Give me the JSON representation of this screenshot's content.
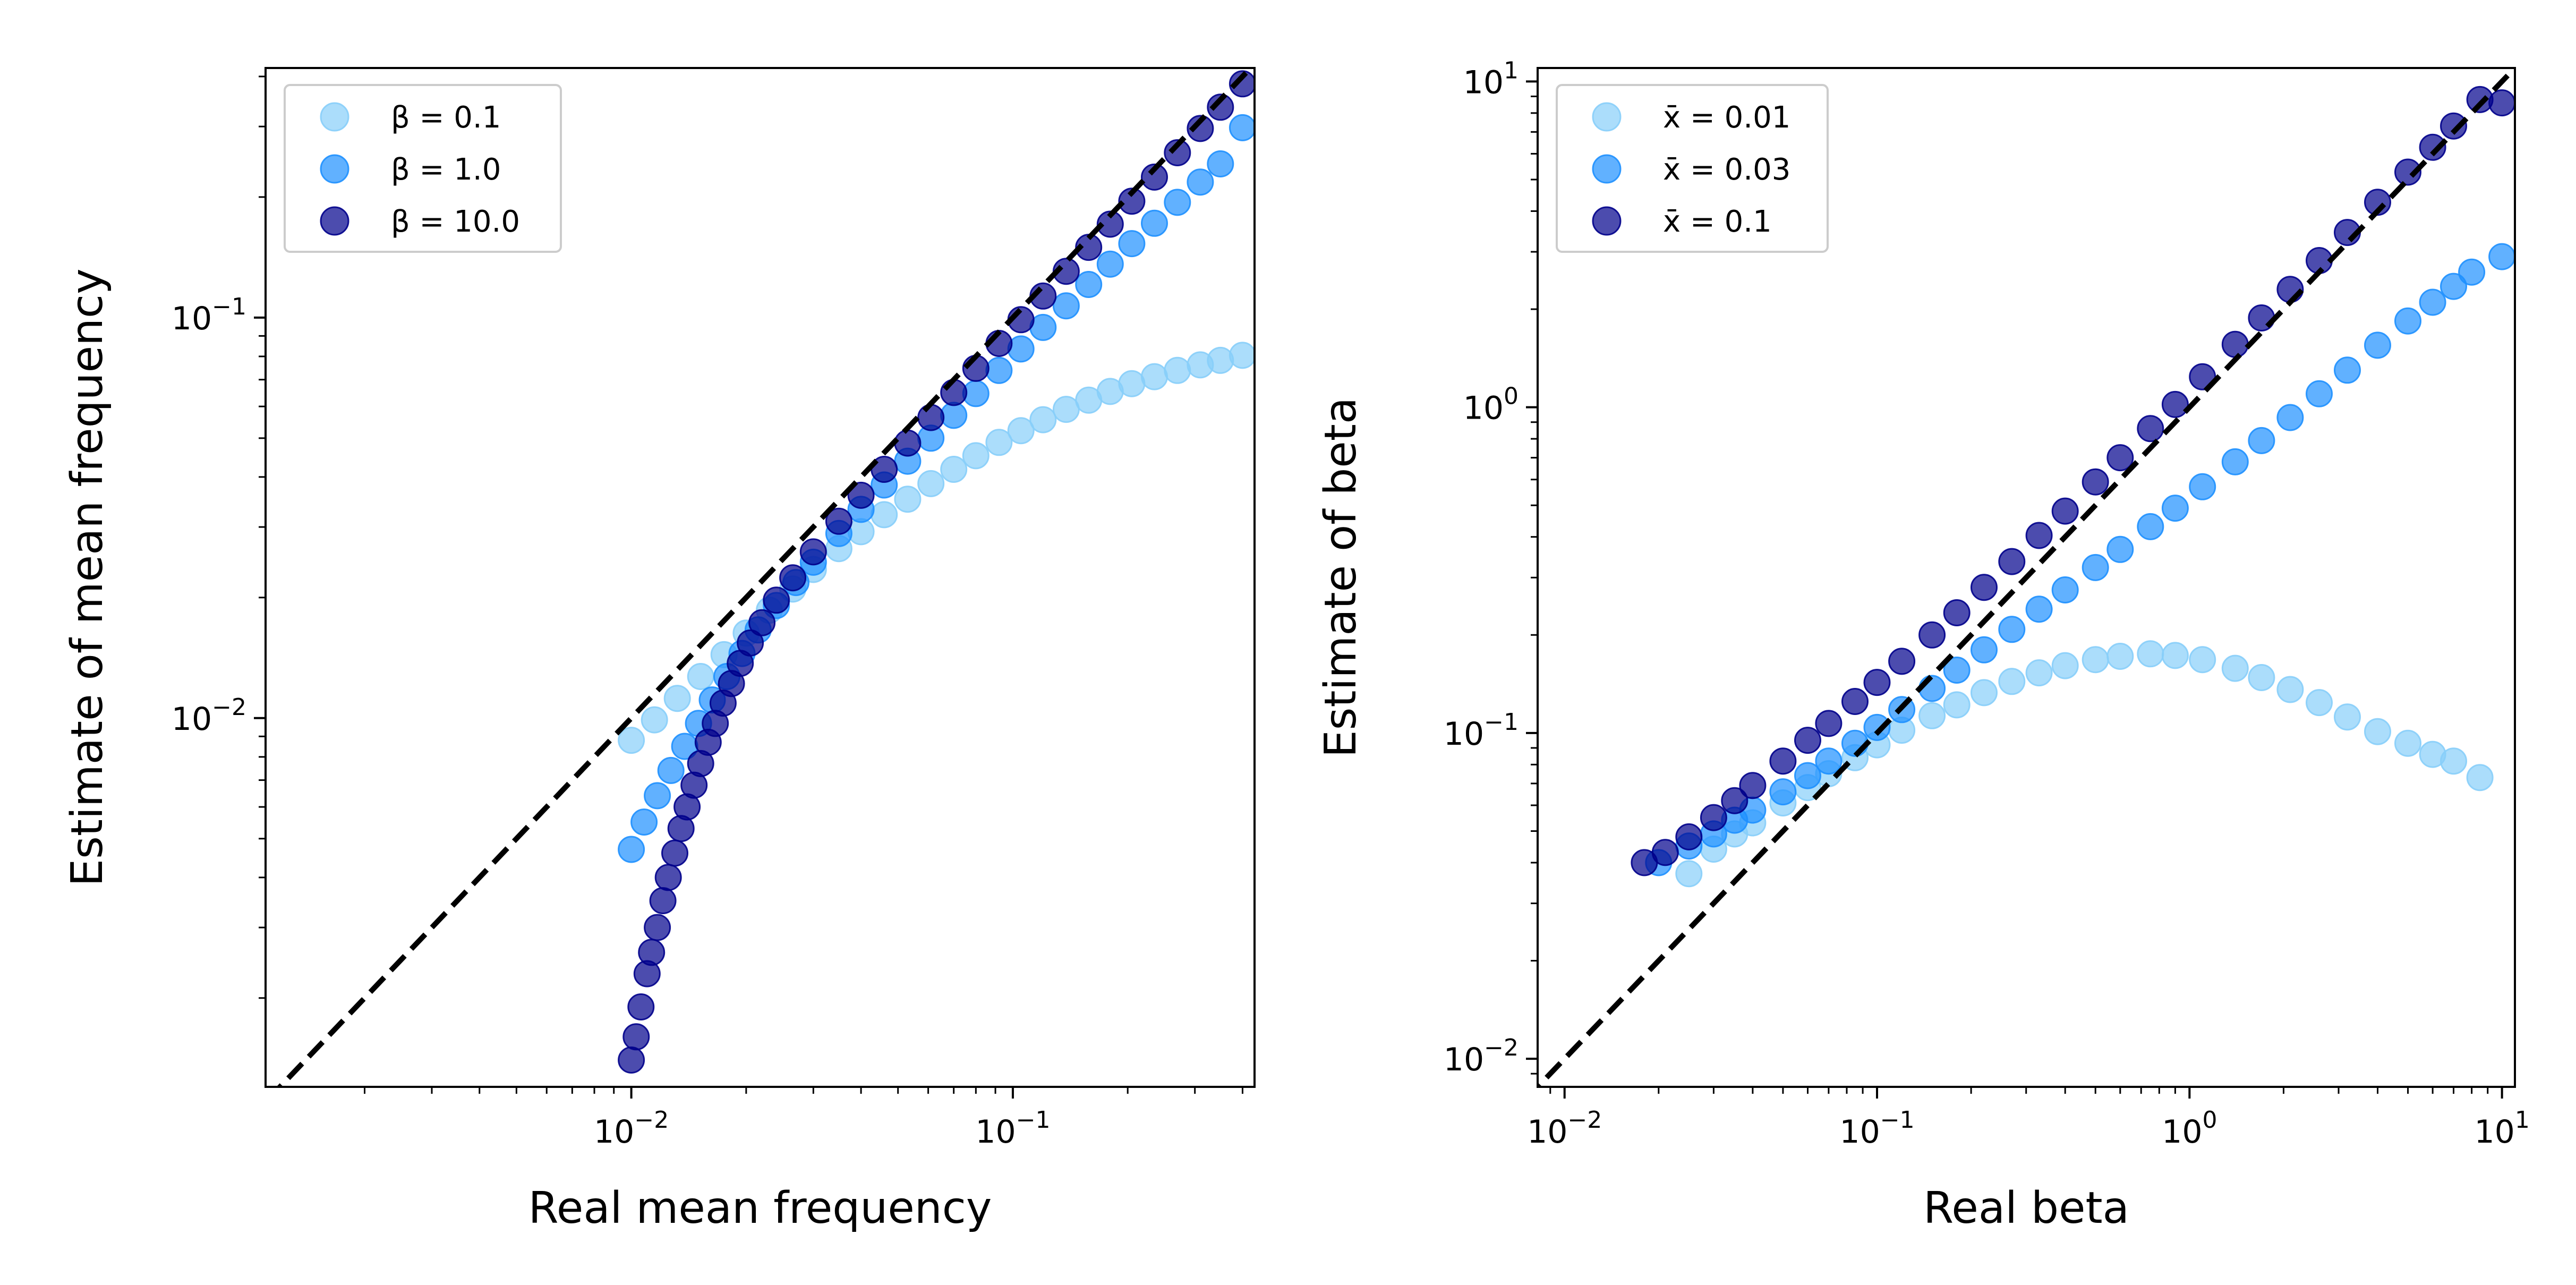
{
  "chart_data": [
    {
      "type": "scatter",
      "xlabel": "Real mean frequency",
      "ylabel": "Estimate of mean frequency",
      "xscale": "log",
      "yscale": "log",
      "xlim": [
        0.0011,
        0.43
      ],
      "ylim": [
        0.0012,
        0.42
      ],
      "xticks": [
        {
          "value": 0.01,
          "base": "10",
          "exp": "−2"
        },
        {
          "value": 0.1,
          "base": "10",
          "exp": "−1"
        }
      ],
      "yticks": [
        {
          "value": 0.01,
          "base": "10",
          "exp": "−2"
        },
        {
          "value": 0.1,
          "base": "10",
          "exp": "−1"
        }
      ],
      "legend": {
        "position": "top-left"
      },
      "reference_line": {
        "style": "dashed",
        "color": "#000000",
        "y_equals_x": true
      },
      "series": [
        {
          "name": "β = 0.1",
          "color": "#87cefa",
          "points": [
            [
              0.01,
              0.0088
            ],
            [
              0.0115,
              0.0099
            ],
            [
              0.0132,
              0.0112
            ],
            [
              0.0152,
              0.0127
            ],
            [
              0.0175,
              0.0144
            ],
            [
              0.02,
              0.0163
            ],
            [
              0.023,
              0.0186
            ],
            [
              0.0265,
              0.021
            ],
            [
              0.03,
              0.0235
            ],
            [
              0.035,
              0.0265
            ],
            [
              0.04,
              0.0292
            ],
            [
              0.046,
              0.0322
            ],
            [
              0.053,
              0.0352
            ],
            [
              0.061,
              0.0385
            ],
            [
              0.07,
              0.0418
            ],
            [
              0.08,
              0.0452
            ],
            [
              0.092,
              0.0488
            ],
            [
              0.105,
              0.0522
            ],
            [
              0.12,
              0.0556
            ],
            [
              0.138,
              0.059
            ],
            [
              0.158,
              0.0622
            ],
            [
              0.18,
              0.0654
            ],
            [
              0.205,
              0.0684
            ],
            [
              0.235,
              0.0712
            ],
            [
              0.27,
              0.0738
            ],
            [
              0.31,
              0.0762
            ],
            [
              0.35,
              0.0782
            ],
            [
              0.4,
              0.0805
            ]
          ]
        },
        {
          "name": "β = 1.0",
          "color": "#1e90ff",
          "points": [
            [
              0.01,
              0.0047
            ],
            [
              0.0108,
              0.0055
            ],
            [
              0.0117,
              0.0064
            ],
            [
              0.0127,
              0.0074
            ],
            [
              0.0138,
              0.0085
            ],
            [
              0.015,
              0.0097
            ],
            [
              0.0163,
              0.0111
            ],
            [
              0.0178,
              0.0127
            ],
            [
              0.0195,
              0.0145
            ],
            [
              0.0215,
              0.0166
            ],
            [
              0.024,
              0.0191
            ],
            [
              0.027,
              0.0218
            ],
            [
              0.03,
              0.0245
            ],
            [
              0.035,
              0.0289
            ],
            [
              0.04,
              0.0332
            ],
            [
              0.046,
              0.0382
            ],
            [
              0.053,
              0.0438
            ],
            [
              0.061,
              0.05
            ],
            [
              0.07,
              0.057
            ],
            [
              0.08,
              0.0646
            ],
            [
              0.092,
              0.0738
            ],
            [
              0.105,
              0.0835
            ],
            [
              0.12,
              0.0945
            ],
            [
              0.138,
              0.107
            ],
            [
              0.158,
              0.121
            ],
            [
              0.18,
              0.136
            ],
            [
              0.205,
              0.153
            ],
            [
              0.235,
              0.172
            ],
            [
              0.27,
              0.194
            ],
            [
              0.31,
              0.218
            ],
            [
              0.35,
              0.242
            ],
            [
              0.4,
              0.298
            ]
          ]
        },
        {
          "name": "β = 10.0",
          "color": "#00008b",
          "points": [
            [
              0.01,
              0.0014
            ],
            [
              0.0103,
              0.0016
            ],
            [
              0.0106,
              0.0019
            ],
            [
              0.011,
              0.0023
            ],
            [
              0.0113,
              0.0026
            ],
            [
              0.0117,
              0.003
            ],
            [
              0.0121,
              0.0035
            ],
            [
              0.0125,
              0.004
            ],
            [
              0.013,
              0.0046
            ],
            [
              0.0135,
              0.0053
            ],
            [
              0.014,
              0.006
            ],
            [
              0.0146,
              0.0068
            ],
            [
              0.0152,
              0.0077
            ],
            [
              0.0159,
              0.0087
            ],
            [
              0.0166,
              0.0097
            ],
            [
              0.0174,
              0.0109
            ],
            [
              0.0183,
              0.0122
            ],
            [
              0.0193,
              0.0137
            ],
            [
              0.0205,
              0.0154
            ],
            [
              0.022,
              0.0173
            ],
            [
              0.024,
              0.0197
            ],
            [
              0.0265,
              0.0224
            ],
            [
              0.03,
              0.026
            ],
            [
              0.035,
              0.031
            ],
            [
              0.04,
              0.036
            ],
            [
              0.046,
              0.0418
            ],
            [
              0.053,
              0.0486
            ],
            [
              0.061,
              0.0563
            ],
            [
              0.07,
              0.065
            ],
            [
              0.08,
              0.0747
            ],
            [
              0.092,
              0.0862
            ],
            [
              0.105,
              0.0988
            ],
            [
              0.12,
              0.1132
            ],
            [
              0.138,
              0.1305
            ],
            [
              0.158,
              0.1498
            ],
            [
              0.18,
              0.1711
            ],
            [
              0.205,
              0.1953
            ],
            [
              0.235,
              0.2243
            ],
            [
              0.27,
              0.258
            ],
            [
              0.31,
              0.2966
            ],
            [
              0.35,
              0.3352
            ],
            [
              0.4,
              0.3835
            ]
          ]
        }
      ]
    },
    {
      "type": "scatter",
      "xlabel": "Real beta",
      "ylabel": "Estimate of beta",
      "xscale": "log",
      "yscale": "log",
      "xlim": [
        0.0082,
        11.0
      ],
      "ylim": [
        0.0082,
        11.0
      ],
      "xticks": [
        {
          "value": 0.01,
          "base": "10",
          "exp": "−2"
        },
        {
          "value": 0.1,
          "base": "10",
          "exp": "−1"
        },
        {
          "value": 1,
          "base": "10",
          "exp": "0"
        },
        {
          "value": 10,
          "base": "10",
          "exp": "1"
        }
      ],
      "yticks": [
        {
          "value": 0.01,
          "base": "10",
          "exp": "−2"
        },
        {
          "value": 0.1,
          "base": "10",
          "exp": "−1"
        },
        {
          "value": 1,
          "base": "10",
          "exp": "0"
        },
        {
          "value": 10,
          "base": "10",
          "exp": "1"
        }
      ],
      "legend": {
        "position": "top-left"
      },
      "reference_line": {
        "style": "dashed",
        "color": "#000000",
        "y_equals_x": true
      },
      "series": [
        {
          "name": "x̄ = 0.01",
          "color": "#87cefa",
          "points": [
            [
              0.025,
              0.037
            ],
            [
              0.03,
              0.044
            ],
            [
              0.035,
              0.049
            ],
            [
              0.04,
              0.053
            ],
            [
              0.05,
              0.061
            ],
            [
              0.06,
              0.068
            ],
            [
              0.07,
              0.075
            ],
            [
              0.085,
              0.084
            ],
            [
              0.1,
              0.092
            ],
            [
              0.12,
              0.102
            ],
            [
              0.15,
              0.113
            ],
            [
              0.18,
              0.122
            ],
            [
              0.22,
              0.133
            ],
            [
              0.27,
              0.144
            ],
            [
              0.33,
              0.153
            ],
            [
              0.4,
              0.161
            ],
            [
              0.5,
              0.168
            ],
            [
              0.6,
              0.172
            ],
            [
              0.75,
              0.175
            ],
            [
              0.9,
              0.173
            ],
            [
              1.1,
              0.168
            ],
            [
              1.4,
              0.158
            ],
            [
              1.7,
              0.148
            ],
            [
              2.1,
              0.136
            ],
            [
              2.6,
              0.124
            ],
            [
              3.2,
              0.112
            ],
            [
              4.0,
              0.101
            ],
            [
              5.0,
              0.093
            ],
            [
              6.0,
              0.086
            ],
            [
              7.0,
              0.082
            ],
            [
              8.5,
              0.073
            ]
          ]
        },
        {
          "name": "x̄ = 0.03",
          "color": "#1e90ff",
          "points": [
            [
              0.02,
              0.04
            ],
            [
              0.025,
              0.045
            ],
            [
              0.03,
              0.049
            ],
            [
              0.035,
              0.054
            ],
            [
              0.04,
              0.058
            ],
            [
              0.05,
              0.066
            ],
            [
              0.06,
              0.074
            ],
            [
              0.07,
              0.082
            ],
            [
              0.085,
              0.093
            ],
            [
              0.1,
              0.104
            ],
            [
              0.12,
              0.118
            ],
            [
              0.15,
              0.137
            ],
            [
              0.18,
              0.156
            ],
            [
              0.22,
              0.18
            ],
            [
              0.27,
              0.208
            ],
            [
              0.33,
              0.24
            ],
            [
              0.4,
              0.275
            ],
            [
              0.5,
              0.322
            ],
            [
              0.6,
              0.366
            ],
            [
              0.75,
              0.43
            ],
            [
              0.9,
              0.49
            ],
            [
              1.1,
              0.57
            ],
            [
              1.4,
              0.68
            ],
            [
              1.7,
              0.79
            ],
            [
              2.1,
              0.93
            ],
            [
              2.6,
              1.1
            ],
            [
              3.2,
              1.3
            ],
            [
              4.0,
              1.55
            ],
            [
              5.0,
              1.84
            ],
            [
              6.0,
              2.1
            ],
            [
              7.0,
              2.35
            ],
            [
              8.0,
              2.6
            ],
            [
              10.0,
              2.9
            ]
          ]
        },
        {
          "name": "x̄ = 0.1",
          "color": "#00008b",
          "points": [
            [
              0.018,
              0.04
            ],
            [
              0.021,
              0.043
            ],
            [
              0.025,
              0.048
            ],
            [
              0.03,
              0.055
            ],
            [
              0.035,
              0.062
            ],
            [
              0.04,
              0.069
            ],
            [
              0.05,
              0.082
            ],
            [
              0.06,
              0.095
            ],
            [
              0.07,
              0.107
            ],
            [
              0.085,
              0.125
            ],
            [
              0.1,
              0.143
            ],
            [
              0.12,
              0.166
            ],
            [
              0.15,
              0.2
            ],
            [
              0.18,
              0.234
            ],
            [
              0.22,
              0.28
            ],
            [
              0.27,
              0.336
            ],
            [
              0.33,
              0.404
            ],
            [
              0.4,
              0.48
            ],
            [
              0.5,
              0.59
            ],
            [
              0.6,
              0.7
            ],
            [
              0.75,
              0.86
            ],
            [
              0.9,
              1.02
            ],
            [
              1.1,
              1.24
            ],
            [
              1.4,
              1.56
            ],
            [
              1.7,
              1.88
            ],
            [
              2.1,
              2.3
            ],
            [
              2.6,
              2.82
            ],
            [
              3.2,
              3.44
            ],
            [
              4.0,
              4.26
            ],
            [
              5.0,
              5.27
            ],
            [
              6.0,
              6.28
            ],
            [
              7.0,
              7.3
            ],
            [
              8.5,
              8.8
            ],
            [
              10.0,
              8.6
            ]
          ]
        }
      ]
    }
  ]
}
